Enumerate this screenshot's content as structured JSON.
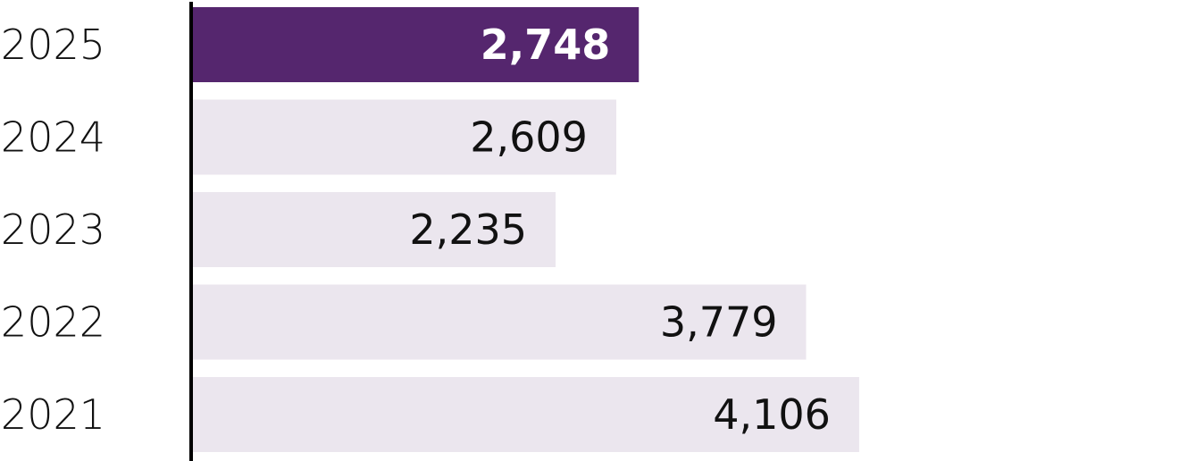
{
  "chart_data": {
    "type": "bar",
    "orientation": "horizontal",
    "categories": [
      "2025",
      "2024",
      "2023",
      "2022",
      "2021"
    ],
    "values": [
      2748,
      2609,
      2235,
      3779,
      4106
    ],
    "value_labels": [
      "2,748",
      "2,609",
      "2,235",
      "3,779",
      "4,106"
    ],
    "highlight_index": 0,
    "xlim": [
      0,
      6000
    ],
    "grid": false,
    "legend": "none",
    "colors": {
      "highlight": "#55266e",
      "bar": "#ebe6ee",
      "axis": "#000000",
      "text": "#111111",
      "highlight_text": "#ffffff"
    }
  }
}
